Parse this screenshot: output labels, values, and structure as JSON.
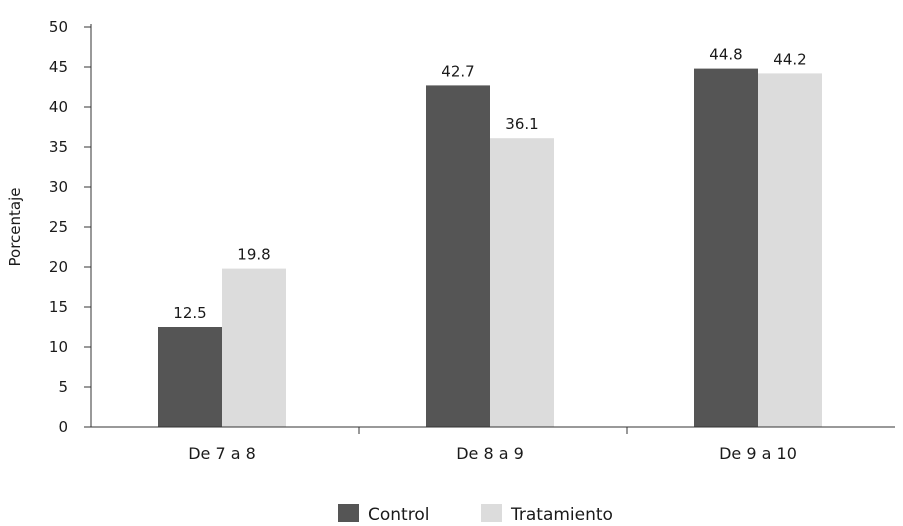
{
  "chart_data": {
    "type": "bar",
    "title": "",
    "xlabel": "",
    "ylabel": "Porcentaje",
    "ylim": [
      0,
      50
    ],
    "yticks": [
      0,
      5,
      10,
      15,
      20,
      25,
      30,
      35,
      40,
      45,
      50
    ],
    "grid": false,
    "legend_position": "bottom",
    "categories": [
      "De 7 a 8",
      "De 8 a 9",
      "De 9 a 10"
    ],
    "series": [
      {
        "name": "Control",
        "values": [
          12.5,
          42.7,
          44.8
        ],
        "color": "#555555"
      },
      {
        "name": "Tratamiento",
        "values": [
          19.8,
          36.1,
          44.2
        ],
        "color": "#dcdcdc"
      }
    ]
  }
}
